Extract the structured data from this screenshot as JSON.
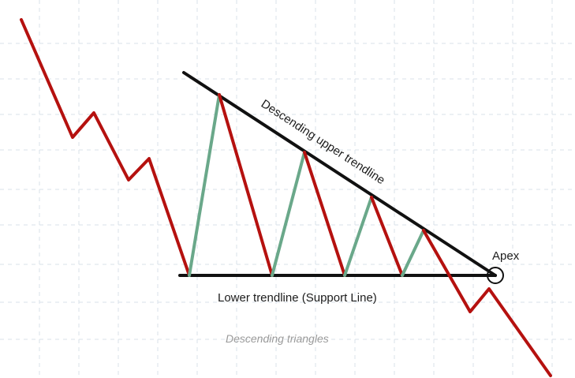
{
  "colors": {
    "price_down": "#b5110f",
    "price_up": "#6aa88a",
    "trendline": "#111111",
    "grid": "#d9e2ea",
    "caption": "#9a9a9a"
  },
  "labels": {
    "upper_trendline": "Descending upper trendline",
    "lower_trendline": "Lower trendline (Support Line)",
    "apex": "Apex",
    "caption": "Descending triangles"
  },
  "icons": {
    "apex_marker": "circle-marker-icon"
  }
}
